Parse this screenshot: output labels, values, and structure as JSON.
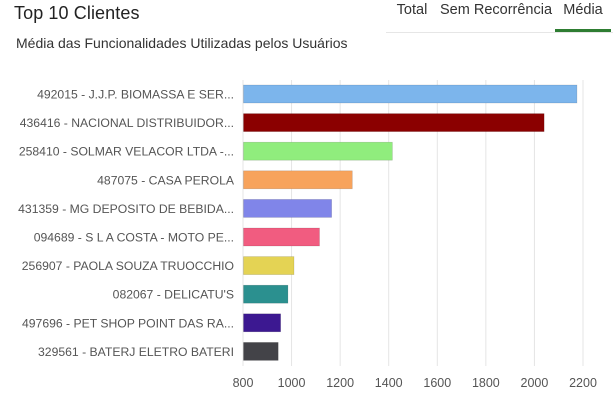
{
  "header": {
    "title": "Top 10 Clientes",
    "subtitle": "Média das Funcionalidades Utilizadas pelos Usuários"
  },
  "tabs": [
    {
      "label": "Total",
      "active": false
    },
    {
      "label": "Sem Recorrência",
      "active": false
    },
    {
      "label": "Média",
      "active": true
    }
  ],
  "colors": {
    "tab_active": "#2e7d32",
    "grid": "#e5e5e5"
  },
  "chart_data": {
    "type": "bar",
    "orientation": "horizontal",
    "title": "",
    "xlabel": "",
    "ylabel": "",
    "xlim": [
      800,
      2200
    ],
    "xticks": [
      800,
      1000,
      1200,
      1400,
      1600,
      1800,
      2000,
      2200
    ],
    "grid": true,
    "categories": [
      "492015 - J.J.P. BIOMASSA E SER...",
      "436416 - NACIONAL DISTRIBUIDOR...",
      "258410 - SOLMAR VELACOR LTDA -...",
      "487075 - CASA PEROLA",
      "431359 - MG DEPOSITO DE BEBIDA...",
      "094689 - S L A COSTA - MOTO PE...",
      "256907 - PAOLA SOUZA TRUOCCHIO",
      "082067 - DELICATU'S",
      "497696 - PET SHOP POINT DAS RA...",
      "329561 - BATERJ ELETRO BATERI"
    ],
    "values": [
      2175,
      2040,
      1415,
      1250,
      1165,
      1115,
      1010,
      985,
      955,
      945
    ],
    "bar_colors": [
      "#7cb5ec",
      "#8b0000",
      "#90ed7d",
      "#f7a35c",
      "#8085e9",
      "#f15c80",
      "#e4d354",
      "#2b908f",
      "#3c1891",
      "#434348"
    ]
  }
}
